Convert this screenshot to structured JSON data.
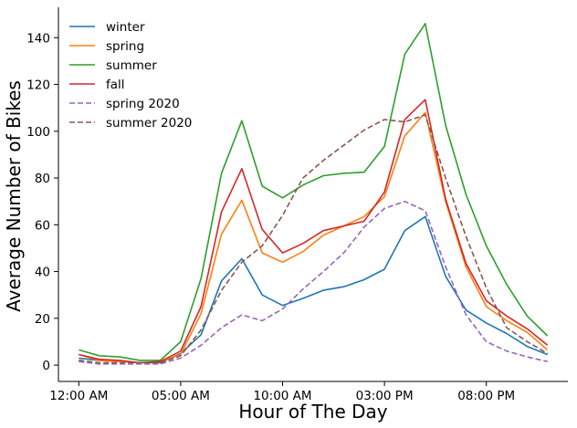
{
  "chart_data": {
    "type": "line",
    "xlabel": "Hour of The Day",
    "ylabel": "Average Number of Bikes",
    "xlim": [
      -1,
      24
    ],
    "ylim": [
      -7,
      153
    ],
    "x_ticks": [
      {
        "value": 0,
        "label": "12:00 AM"
      },
      {
        "value": 5,
        "label": "05:00 AM"
      },
      {
        "value": 10,
        "label": "10:00 AM"
      },
      {
        "value": 15,
        "label": "03:00 PM"
      },
      {
        "value": 20,
        "label": "08:00 PM"
      }
    ],
    "y_ticks": [
      0,
      20,
      40,
      60,
      80,
      100,
      120,
      140
    ],
    "legend_position": "top-left",
    "grid": false,
    "x": [
      0,
      1,
      2,
      3,
      4,
      5,
      6,
      7,
      8,
      9,
      10,
      11,
      12,
      13,
      14,
      15,
      16,
      17,
      18,
      19,
      20,
      21,
      22,
      23
    ],
    "series": [
      {
        "name": "winter",
        "color": "#1f77b4",
        "dash": "solid",
        "values": [
          3,
          2,
          1.5,
          1,
          1,
          5,
          13,
          36,
          45.5,
          30,
          25.5,
          28.5,
          32,
          33.5,
          36.5,
          41,
          57.5,
          63.5,
          38,
          23.5,
          18,
          13.5,
          8,
          4.5
        ]
      },
      {
        "name": "spring",
        "color": "#ff7f0e",
        "dash": "solid",
        "values": [
          4.5,
          2,
          1.5,
          1,
          1.5,
          4.5,
          22,
          56,
          70.5,
          48,
          44,
          48.5,
          55.5,
          59.5,
          63.5,
          72,
          98,
          108,
          70,
          42,
          25,
          19,
          14,
          6.5
        ]
      },
      {
        "name": "summer",
        "color": "#2ca02c",
        "dash": "solid",
        "values": [
          6.5,
          4,
          3.5,
          2,
          2,
          10,
          37,
          82,
          104.5,
          76.5,
          71.5,
          77,
          81,
          82,
          82.5,
          93.5,
          133,
          146,
          102.5,
          73,
          51,
          34.5,
          21,
          12.5
        ]
      },
      {
        "name": "fall",
        "color": "#d62728",
        "dash": "solid",
        "values": [
          4.5,
          2.5,
          2,
          1,
          1.5,
          6,
          25,
          65.5,
          84,
          58,
          48,
          52,
          57.5,
          59.5,
          61.5,
          74,
          105,
          113.5,
          71,
          43.5,
          27.5,
          21,
          15.5,
          8.5
        ]
      },
      {
        "name": "spring 2020",
        "color": "#9467bd",
        "dash": "dashed",
        "values": [
          1.5,
          0.5,
          0.5,
          0.5,
          0.5,
          3,
          8.5,
          16,
          21.5,
          19,
          24,
          32.5,
          40,
          48,
          59,
          67,
          70,
          66,
          42,
          21.5,
          10,
          6,
          3.5,
          1.5
        ]
      },
      {
        "name": "summer 2020",
        "color": "#8c564b",
        "dash": "dashed",
        "values": [
          2,
          1,
          1,
          1,
          1,
          4,
          15,
          32,
          44,
          51,
          64,
          80,
          87.5,
          94,
          100.5,
          105,
          104,
          107,
          80,
          55,
          33,
          16,
          10,
          5
        ]
      }
    ]
  }
}
